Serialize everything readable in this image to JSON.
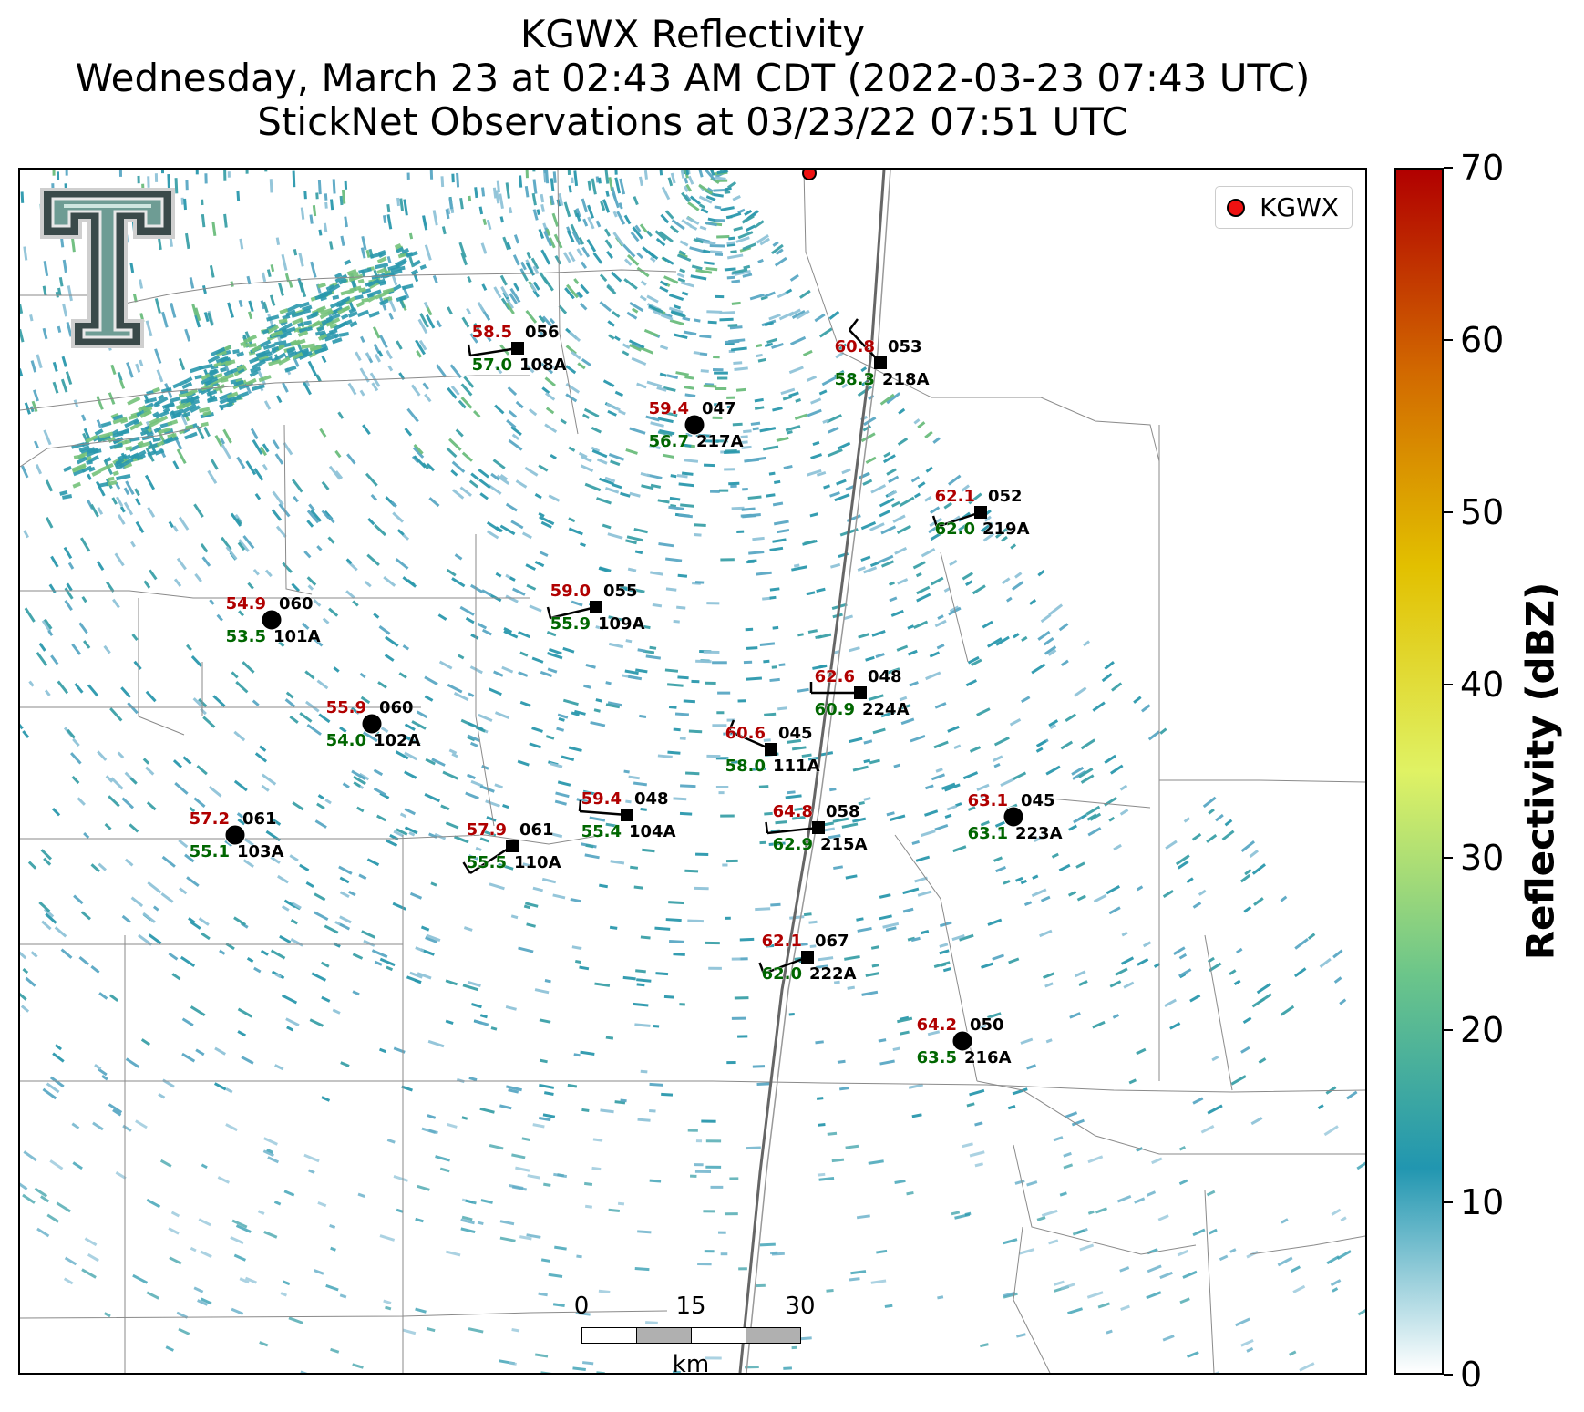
{
  "title": {
    "line1": "KGWX Reflectivity",
    "line2": "Wednesday, March 23 at 02:43 AM CDT (2022-03-23 07:43 UTC)",
    "line3": "StickNet Observations at 03/23/22 07:51 UTC"
  },
  "legend": {
    "label": "KGWX",
    "marker_color": "#ee1111"
  },
  "colorbar": {
    "label": "Reflectivity (dBZ)",
    "min": 0,
    "max": 70,
    "ticks": [
      "0",
      "10",
      "20",
      "30",
      "40",
      "50",
      "60",
      "70"
    ],
    "colors": [
      "#ffffff",
      "#2196b0",
      "#6bc58a",
      "#e0f264",
      "#e2c000",
      "#d26a00",
      "#b10000"
    ]
  },
  "scale_bar": {
    "labels": [
      "0",
      "15",
      "30"
    ],
    "unit": "km"
  },
  "logo": {
    "icon": "double-t-logo-icon"
  },
  "colors": {
    "temperature": "#b00000",
    "dewpoint": "#006600",
    "station_text": "#000000"
  },
  "stations": [
    {
      "id": "108A",
      "temp": "58.5",
      "dew": "57.0",
      "dir": "056",
      "marker": "square"
    },
    {
      "id": "218A",
      "temp": "60.8",
      "dew": "58.3",
      "dir": "053",
      "marker": "square"
    },
    {
      "id": "217A",
      "temp": "59.4",
      "dew": "56.7",
      "dir": "047",
      "marker": "circle"
    },
    {
      "id": "219A",
      "temp": "62.1",
      "dew": "62.0",
      "dir": "052",
      "marker": "square"
    },
    {
      "id": "101A",
      "temp": "54.9",
      "dew": "53.5",
      "dir": "060",
      "marker": "circle"
    },
    {
      "id": "109A",
      "temp": "59.0",
      "dew": "55.9",
      "dir": "055",
      "marker": "square"
    },
    {
      "id": "224A",
      "temp": "62.6",
      "dew": "60.9",
      "dir": "048",
      "marker": "square"
    },
    {
      "id": "102A",
      "temp": "55.9",
      "dew": "54.0",
      "dir": "060",
      "marker": "circle"
    },
    {
      "id": "111A",
      "temp": "60.6",
      "dew": "58.0",
      "dir": "045",
      "marker": "square"
    },
    {
      "id": "103A",
      "temp": "57.2",
      "dew": "55.1",
      "dir": "061",
      "marker": "circle"
    },
    {
      "id": "104A",
      "temp": "59.4",
      "dew": "55.4",
      "dir": "048",
      "marker": "square"
    },
    {
      "id": "110A",
      "temp": "57.9",
      "dew": "55.5",
      "dir": "061",
      "marker": "square"
    },
    {
      "id": "215A",
      "temp": "64.8",
      "dew": "62.9",
      "dir": "058",
      "marker": "square"
    },
    {
      "id": "223A",
      "temp": "63.1",
      "dew": "63.1",
      "dir": "045",
      "marker": "circle"
    },
    {
      "id": "222A",
      "temp": "62.1",
      "dew": "62.0",
      "dir": "067",
      "marker": "square"
    },
    {
      "id": "216A",
      "temp": "64.2",
      "dew": "63.5",
      "dir": "050",
      "marker": "circle"
    }
  ]
}
